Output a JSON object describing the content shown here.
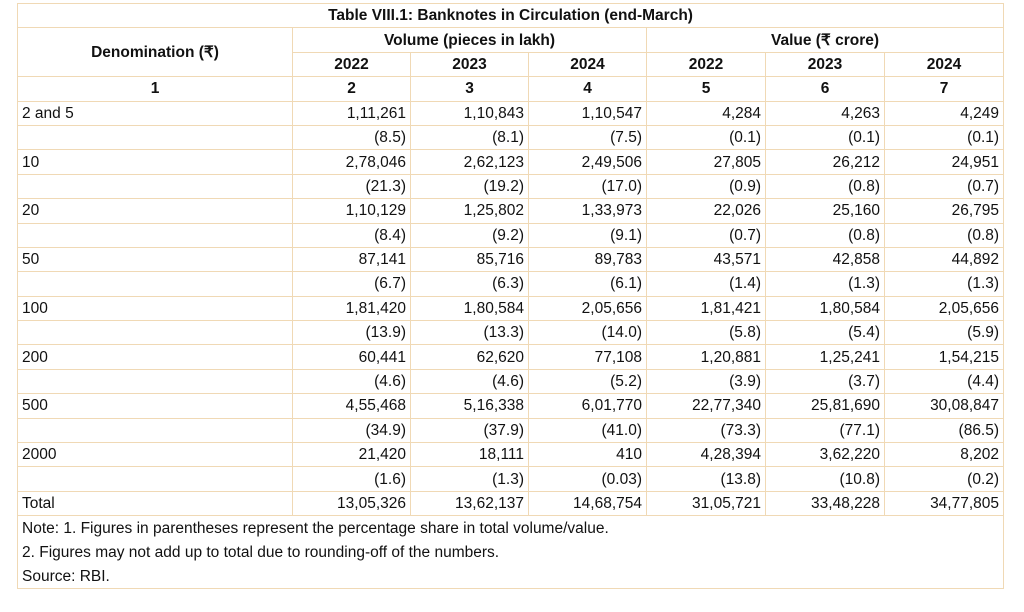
{
  "title": "Table VIII.1: Banknotes in Circulation (end-March)",
  "header": {
    "denomination": "Denomination (₹)",
    "volume_group": "Volume (pieces in lakh)",
    "value_group": "Value (₹ crore)",
    "years": [
      "2022",
      "2023",
      "2024",
      "2022",
      "2023",
      "2024"
    ],
    "col_numbers": [
      "1",
      "2",
      "3",
      "4",
      "5",
      "6",
      "7"
    ]
  },
  "rows": [
    {
      "label": "2 and 5",
      "values": [
        "1,11,261",
        "1,10,843",
        "1,10,547",
        "4,284",
        "4,263",
        "4,249"
      ],
      "shares": [
        "(8.5)",
        "(8.1)",
        "(7.5)",
        "(0.1)",
        "(0.1)",
        "(0.1)"
      ]
    },
    {
      "label": "10",
      "values": [
        "2,78,046",
        "2,62,123",
        "2,49,506",
        "27,805",
        "26,212",
        "24,951"
      ],
      "shares": [
        "(21.3)",
        "(19.2)",
        "(17.0)",
        "(0.9)",
        "(0.8)",
        "(0.7)"
      ]
    },
    {
      "label": "20",
      "values": [
        "1,10,129",
        "1,25,802",
        "1,33,973",
        "22,026",
        "25,160",
        "26,795"
      ],
      "shares": [
        "(8.4)",
        "(9.2)",
        "(9.1)",
        "(0.7)",
        "(0.8)",
        "(0.8)"
      ]
    },
    {
      "label": "50",
      "values": [
        "87,141",
        "85,716",
        "89,783",
        "43,571",
        "42,858",
        "44,892"
      ],
      "shares": [
        "(6.7)",
        "(6.3)",
        "(6.1)",
        "(1.4)",
        "(1.3)",
        "(1.3)"
      ]
    },
    {
      "label": "100",
      "values": [
        "1,81,420",
        "1,80,584",
        "2,05,656",
        "1,81,421",
        "1,80,584",
        "2,05,656"
      ],
      "shares": [
        "(13.9)",
        "(13.3)",
        "(14.0)",
        "(5.8)",
        "(5.4)",
        "(5.9)"
      ]
    },
    {
      "label": "200",
      "values": [
        "60,441",
        "62,620",
        "77,108",
        "1,20,881",
        "1,25,241",
        "1,54,215"
      ],
      "shares": [
        "(4.6)",
        "(4.6)",
        "(5.2)",
        "(3.9)",
        "(3.7)",
        "(4.4)"
      ]
    },
    {
      "label": "500",
      "values": [
        "4,55,468",
        "5,16,338",
        "6,01,770",
        "22,77,340",
        "25,81,690",
        "30,08,847"
      ],
      "shares": [
        "(34.9)",
        "(37.9)",
        "(41.0)",
        "(73.3)",
        "(77.1)",
        "(86.5)"
      ]
    },
    {
      "label": "2000",
      "values": [
        "21,420",
        "18,111",
        "410",
        "4,28,394",
        "3,62,220",
        "8,202"
      ],
      "shares": [
        "(1.6)",
        "(1.3)",
        "(0.03)",
        "(13.8)",
        "(10.8)",
        "(0.2)"
      ]
    }
  ],
  "total": {
    "label": "Total",
    "values": [
      "13,05,326",
      "13,62,137",
      "14,68,754",
      "31,05,721",
      "33,48,228",
      "34,77,805"
    ]
  },
  "notes": [
    "Note: 1. Figures in parentheses represent the percentage share in total volume/value.",
    "2. Figures may not add up to total due to rounding-off of the numbers.",
    "Source: RBI."
  ]
}
